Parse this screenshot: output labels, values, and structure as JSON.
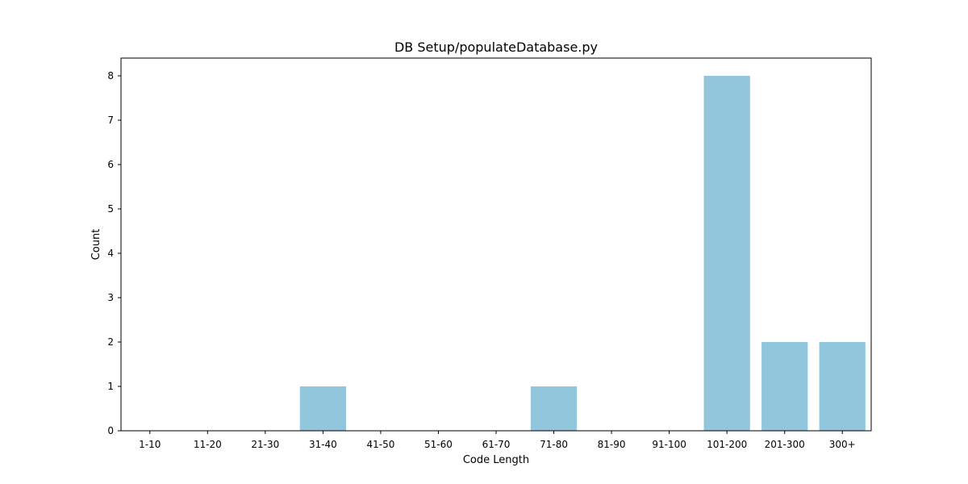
{
  "chart_data": {
    "type": "bar",
    "title": "DB Setup/populateDatabase.py",
    "xlabel": "Code Length",
    "ylabel": "Count",
    "categories": [
      "1-10",
      "11-20",
      "21-30",
      "31-40",
      "41-50",
      "51-60",
      "61-70",
      "71-80",
      "81-90",
      "91-100",
      "101-200",
      "201-300",
      "300+"
    ],
    "values": [
      0,
      0,
      0,
      1,
      0,
      0,
      0,
      1,
      0,
      0,
      8,
      2,
      2
    ],
    "ylim": [
      0,
      8.4
    ],
    "yticks": [
      0,
      1,
      2,
      3,
      4,
      5,
      6,
      7,
      8
    ],
    "bar_color": "#92c6dc",
    "grid": false,
    "legend": "none"
  }
}
